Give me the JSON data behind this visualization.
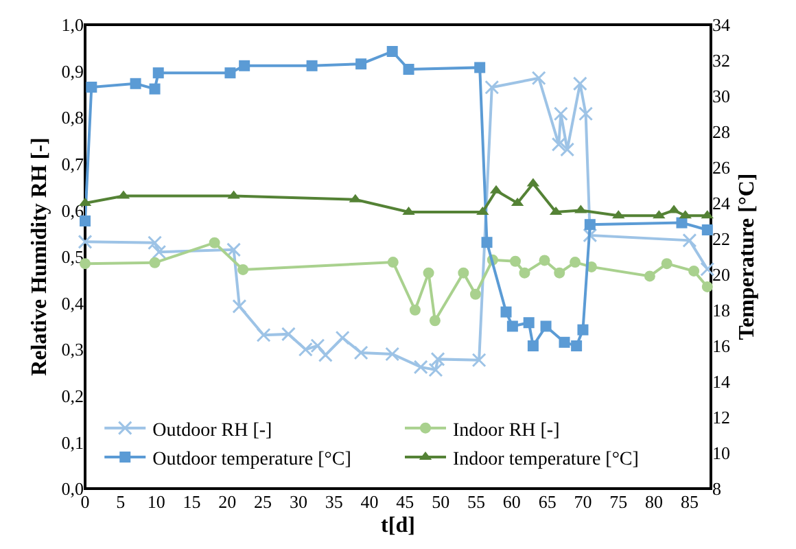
{
  "chart_data": {
    "type": "line",
    "xlabel": "t[d]",
    "ylabel": "Relative Humidity RH [-]",
    "y2label": "Temperature [°C]",
    "xlim": [
      0,
      88
    ],
    "xticks": [
      0,
      5,
      10,
      15,
      20,
      25,
      30,
      35,
      40,
      45,
      50,
      55,
      60,
      65,
      70,
      75,
      80,
      85
    ],
    "ylim": [
      0,
      1
    ],
    "yticks": [
      {
        "value": 0,
        "label": "0,0"
      },
      {
        "value": 0.1,
        "label": "0,1"
      },
      {
        "value": 0.2,
        "label": "0,2"
      },
      {
        "value": 0.3,
        "label": "0,3"
      },
      {
        "value": 0.4,
        "label": "0,4"
      },
      {
        "value": 0.5,
        "label": "0,5"
      },
      {
        "value": 0.6,
        "label": "0,6"
      },
      {
        "value": 0.7,
        "label": "0,7"
      },
      {
        "value": 0.8,
        "label": "0,8"
      },
      {
        "value": 0.9,
        "label": "0,9"
      },
      {
        "value": 1,
        "label": "1,0"
      }
    ],
    "y2lim": [
      8,
      34
    ],
    "y2ticks": [
      8,
      10,
      12,
      14,
      16,
      18,
      20,
      22,
      24,
      26,
      28,
      30,
      32,
      34
    ],
    "grid": false,
    "legend": "bottom",
    "line_style": "solid",
    "series": [
      {
        "name": "Outdoor RH [-]",
        "color": "#9dc3e6",
        "marker": "cross",
        "x": [
          0,
          9.8,
          10.4,
          20.9,
          21.7,
          25.1,
          28.6,
          31.0,
          32.7,
          33.8,
          36.2,
          38.8,
          43.2,
          47.2,
          49.3,
          49.6,
          55.4,
          57.2,
          63.8,
          66.6,
          66.9,
          67.8,
          69.6,
          70.4,
          71.0,
          85.0,
          87.5
        ],
        "values": [
          0.532,
          0.53,
          0.51,
          0.515,
          0.393,
          0.331,
          0.333,
          0.3,
          0.308,
          0.288,
          0.325,
          0.293,
          0.29,
          0.262,
          0.256,
          0.279,
          0.277,
          0.865,
          0.885,
          0.742,
          0.808,
          0.731,
          0.873,
          0.808,
          0.546,
          0.535,
          0.473
        ]
      },
      {
        "name": "Indoor RH [-]",
        "color": "#a9d18e",
        "marker": "circle",
        "x": [
          0,
          9.8,
          18.2,
          22.2,
          43.3,
          46.4,
          48.3,
          49.2,
          53.2,
          54.9,
          57.3,
          60.5,
          61.8,
          64.6,
          66.7,
          68.9,
          71.2,
          79.4,
          81.8,
          85.6,
          87.5
        ],
        "values": [
          0.485,
          0.487,
          0.53,
          0.472,
          0.488,
          0.385,
          0.465,
          0.362,
          0.465,
          0.419,
          0.493,
          0.49,
          0.465,
          0.492,
          0.465,
          0.488,
          0.478,
          0.458,
          0.485,
          0.469,
          0.435
        ]
      },
      {
        "name": "Outdoor temperature [°C]",
        "color": "#5b9bd5",
        "marker": "square",
        "axis": "y2",
        "x": [
          0,
          0.9,
          7.1,
          9.8,
          10.3,
          20.4,
          22.4,
          31.9,
          38.8,
          43.2,
          45.5,
          55.5,
          56.5,
          59.2,
          60.1,
          62.4,
          63.0,
          64.8,
          67.4,
          69.1,
          70.0,
          71.0,
          83.9,
          87.5
        ],
        "values": [
          23.0,
          30.5,
          30.7,
          30.4,
          31.3,
          31.3,
          31.7,
          31.7,
          31.8,
          32.5,
          31.5,
          31.6,
          21.8,
          17.9,
          17.1,
          17.3,
          16.0,
          17.1,
          16.2,
          16.0,
          16.9,
          22.8,
          22.9,
          22.5
        ]
      },
      {
        "name": "Indoor temperature [°C]",
        "color": "#548235",
        "marker": "triangle",
        "axis": "y2",
        "x": [
          0,
          5.4,
          20.9,
          38.0,
          45.5,
          55.9,
          57.8,
          60.8,
          63.0,
          66.2,
          69.7,
          75.0,
          80.7,
          82.8,
          84.4,
          87.5
        ],
        "values": [
          24.0,
          24.4,
          24.4,
          24.2,
          23.5,
          23.5,
          24.7,
          24.0,
          25.1,
          23.5,
          23.6,
          23.3,
          23.3,
          23.6,
          23.3,
          23.3
        ]
      }
    ]
  }
}
